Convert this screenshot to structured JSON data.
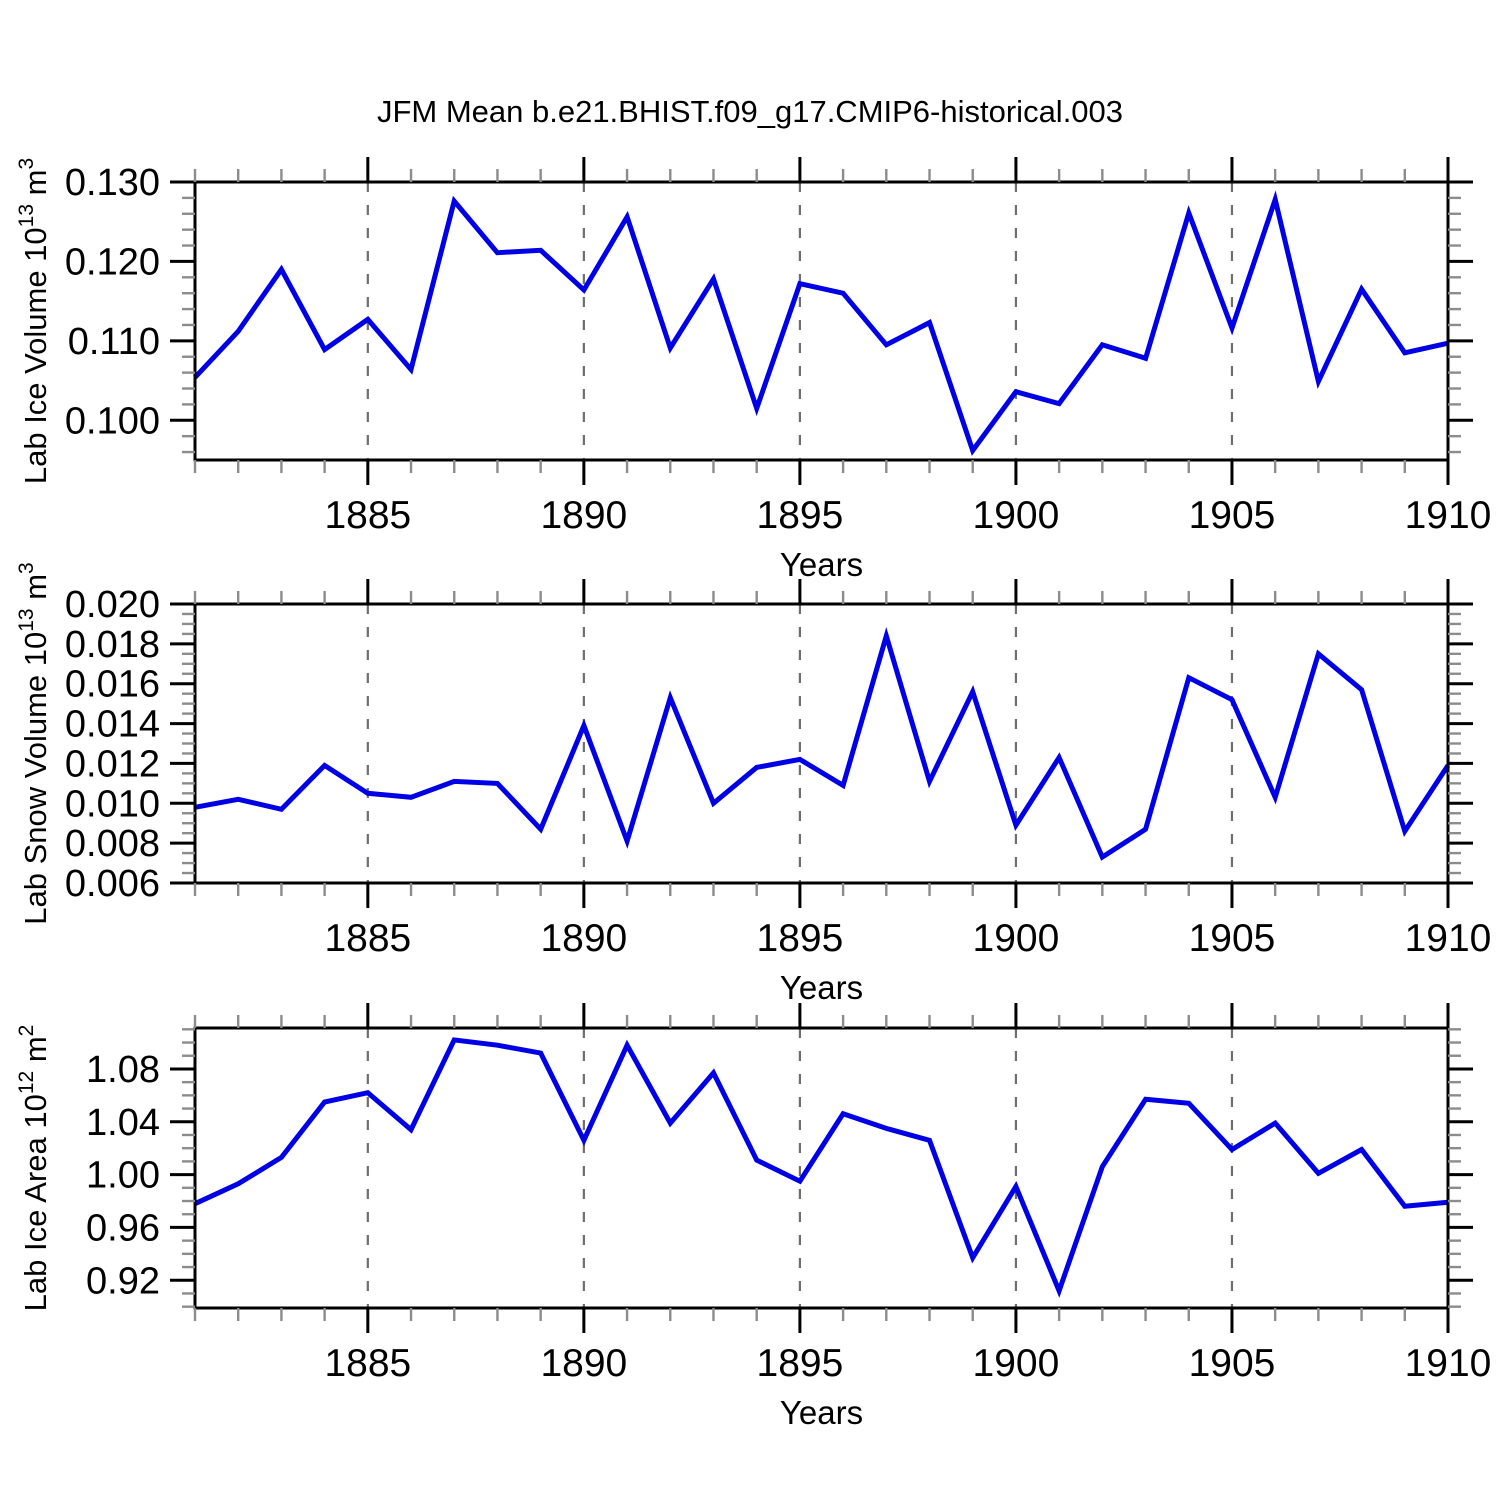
{
  "title": "JFM Mean b.e21.BHIST.f09_g17.CMIP6-historical.003",
  "line_color": "#0000e6",
  "gridline_color": "#6e6e6e",
  "axis_color": "#000000",
  "minor_tick_color": "#8c8c8c",
  "x_axis": {
    "label": "Years",
    "range": [
      1881,
      1910
    ],
    "major_ticks": [
      1885,
      1890,
      1895,
      1900,
      1905,
      1910
    ],
    "major_tick_labels": [
      "1885",
      "1890",
      "1895",
      "1900",
      "1905",
      "1910"
    ],
    "minor_step": 1,
    "gridlines": [
      1885,
      1890,
      1895,
      1900,
      1905
    ]
  },
  "years": [
    1881,
    1882,
    1883,
    1884,
    1885,
    1886,
    1887,
    1888,
    1889,
    1890,
    1891,
    1892,
    1893,
    1894,
    1895,
    1896,
    1897,
    1898,
    1899,
    1900,
    1901,
    1902,
    1903,
    1904,
    1905,
    1906,
    1907,
    1908,
    1909,
    1910
  ],
  "chart_data": [
    {
      "type": "line",
      "title": "JFM Mean b.e21.BHIST.f09_g17.CMIP6-historical.003",
      "ylabel": "Lab Ice Volume 10^13 m^3",
      "ylabel_segments": [
        {
          "text": "Lab Ice Volume 10",
          "sup": false
        },
        {
          "text": "13",
          "sup": true
        },
        {
          "text": " m",
          "sup": false
        },
        {
          "text": "3",
          "sup": true
        }
      ],
      "xlabel": "Years",
      "ylim": [
        0.095,
        0.13
      ],
      "ytick_values": [
        0.1,
        0.11,
        0.12,
        0.13
      ],
      "ytick_labels": [
        "0.100",
        "0.110",
        "0.120",
        "0.130"
      ],
      "yminor_step": 0.002,
      "x": [
        1881,
        1882,
        1883,
        1884,
        1885,
        1886,
        1887,
        1888,
        1889,
        1890,
        1891,
        1892,
        1893,
        1894,
        1895,
        1896,
        1897,
        1898,
        1899,
        1900,
        1901,
        1902,
        1903,
        1904,
        1905,
        1906,
        1907,
        1908,
        1909,
        1910
      ],
      "values": [
        0.1054,
        0.1112,
        0.119,
        0.1089,
        0.1127,
        0.1064,
        0.1276,
        0.1211,
        0.1214,
        0.1164,
        0.1256,
        0.1091,
        0.1178,
        0.1015,
        0.1172,
        0.116,
        0.1095,
        0.1123,
        0.0962,
        0.1036,
        0.1021,
        0.1095,
        0.1078,
        0.1261,
        0.1116,
        0.1278,
        0.1049,
        0.1165,
        0.1085,
        0.1097
      ]
    },
    {
      "type": "line",
      "ylabel": "Lab Snow Volume 10^13 m^3",
      "ylabel_segments": [
        {
          "text": "Lab Snow Volume 10",
          "sup": false
        },
        {
          "text": "13",
          "sup": true
        },
        {
          "text": " m",
          "sup": false
        },
        {
          "text": "3",
          "sup": true
        }
      ],
      "xlabel": "Years",
      "ylim": [
        0.006,
        0.02
      ],
      "ytick_values": [
        0.006,
        0.008,
        0.01,
        0.012,
        0.014,
        0.016,
        0.018,
        0.02
      ],
      "ytick_labels": [
        "0.006",
        "0.008",
        "0.010",
        "0.012",
        "0.014",
        "0.016",
        "0.018",
        "0.020"
      ],
      "yminor_step": 0.0005,
      "x": [
        1881,
        1882,
        1883,
        1884,
        1885,
        1886,
        1887,
        1888,
        1889,
        1890,
        1891,
        1892,
        1893,
        1894,
        1895,
        1896,
        1897,
        1898,
        1899,
        1900,
        1901,
        1902,
        1903,
        1904,
        1905,
        1906,
        1907,
        1908,
        1909,
        1910
      ],
      "values": [
        0.0098,
        0.0102,
        0.0097,
        0.0119,
        0.0105,
        0.0103,
        0.0111,
        0.011,
        0.0087,
        0.0139,
        0.0081,
        0.0153,
        0.01,
        0.0118,
        0.0122,
        0.0109,
        0.0184,
        0.0111,
        0.0156,
        0.0089,
        0.0123,
        0.0073,
        0.0087,
        0.0163,
        0.0152,
        0.0103,
        0.0175,
        0.0157,
        0.0086,
        0.0119
      ]
    },
    {
      "type": "line",
      "ylabel": "Lab Ice Area 10^12 m^2",
      "ylabel_segments": [
        {
          "text": "Lab Ice Area 10",
          "sup": false
        },
        {
          "text": "12",
          "sup": true
        },
        {
          "text": " m",
          "sup": false
        },
        {
          "text": "2",
          "sup": true
        }
      ],
      "xlabel": "Years",
      "ylim": [
        0.899,
        1.111
      ],
      "ytick_values": [
        0.92,
        0.96,
        1.0,
        1.04,
        1.08
      ],
      "ytick_labels": [
        "0.92",
        "0.96",
        "1.00",
        "1.04",
        "1.08"
      ],
      "yminor_step": 0.01,
      "x": [
        1881,
        1882,
        1883,
        1884,
        1885,
        1886,
        1887,
        1888,
        1889,
        1890,
        1891,
        1892,
        1893,
        1894,
        1895,
        1896,
        1897,
        1898,
        1899,
        1900,
        1901,
        1902,
        1903,
        1904,
        1905,
        1906,
        1907,
        1908,
        1909,
        1910
      ],
      "values": [
        0.978,
        0.993,
        1.013,
        1.055,
        1.062,
        1.034,
        1.102,
        1.098,
        1.092,
        1.026,
        1.098,
        1.039,
        1.077,
        1.011,
        0.995,
        1.046,
        1.035,
        1.026,
        0.937,
        0.991,
        0.912,
        1.006,
        1.057,
        1.054,
        1.019,
        1.039,
        1.001,
        1.019,
        0.976,
        0.979
      ]
    }
  ]
}
